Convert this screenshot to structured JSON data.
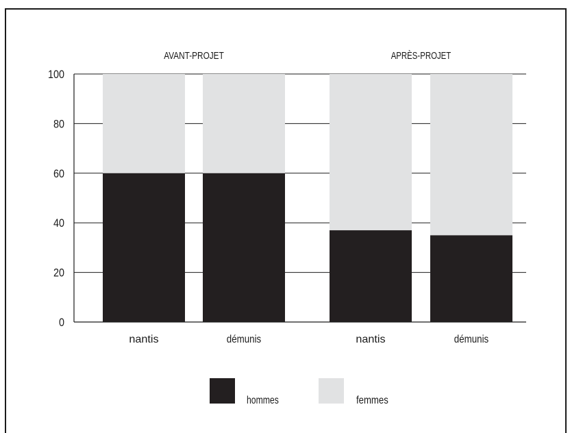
{
  "chart_data": {
    "type": "bar",
    "stacked": true,
    "groups": [
      {
        "label": "AVANT-PROJET",
        "categories": [
          "nantis",
          "démunis"
        ]
      },
      {
        "label": "APRÈS-PROJET",
        "categories": [
          "nantis",
          "démunis"
        ]
      }
    ],
    "categories": [
      "nantis",
      "démunis",
      "nantis",
      "démunis"
    ],
    "series": [
      {
        "name": "hommes",
        "color": "#231f20",
        "values": [
          60,
          60,
          37,
          35
        ]
      },
      {
        "name": "femmes",
        "color": "#e1e2e3",
        "values": [
          40,
          40,
          63,
          65
        ]
      }
    ],
    "ylim": [
      0,
      100
    ],
    "yticks": [
      "0",
      "20",
      "40",
      "60",
      "80",
      "100"
    ],
    "grid": true,
    "legend": "bottom",
    "title": "",
    "xlabel": "",
    "ylabel": ""
  }
}
